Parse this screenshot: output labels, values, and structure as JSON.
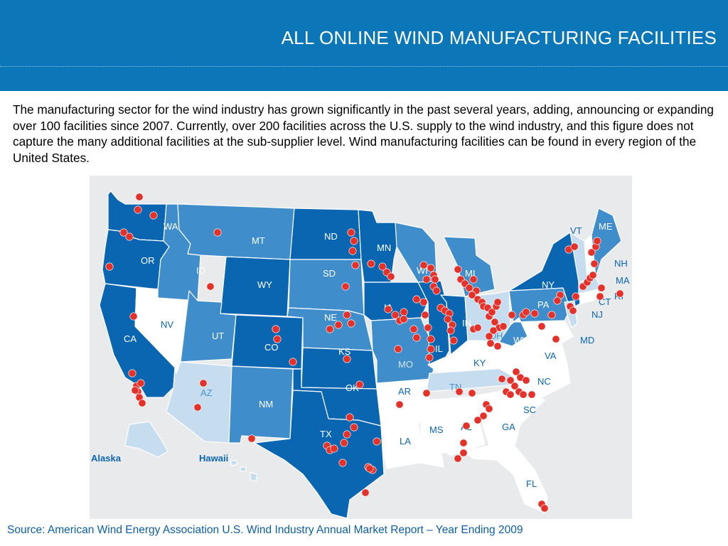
{
  "title": "ALL ONLINE WIND MANUFACTURING FACILITIES",
  "intro": "The manufacturing sector for the wind industry has grown significantly in the past several years, adding, announcing or expanding over 100 facilities since 2007. Currently, over 200 facilities across the U.S. supply to the wind industry, and this figure does not capture the many additional facilities at the sub-supplier level. Wind manufacturing facilities can be found in every region of the United States.",
  "source": "Source: American Wind Energy Association U.S. Wind Industry Annual Market Report – Year Ending 2009",
  "colors": {
    "header": "#0b77b9",
    "dark_state": "#0b66b2",
    "mid_state": "#3f8ecb",
    "light_state": "#c6dcef",
    "no_state": "#ffffff",
    "facility_dot": "#e4322b",
    "ocean": "#e8eaeb"
  },
  "map": {
    "state_labels": [
      "WA",
      "OR",
      "CA",
      "NV",
      "ID",
      "MT",
      "WY",
      "UT",
      "CO",
      "AZ",
      "NM",
      "ND",
      "SD",
      "NE",
      "KS",
      "OK",
      "TX",
      "MN",
      "IA",
      "MO",
      "AR",
      "LA",
      "WI",
      "IL",
      "MI",
      "IN",
      "OH",
      "KY",
      "TN",
      "MS",
      "AL",
      "GA",
      "FL",
      "SC",
      "NC",
      "VA",
      "WV",
      "PA",
      "NY",
      "MD",
      "NJ",
      "CT",
      "RI",
      "MA",
      "NH",
      "VT",
      "ME"
    ],
    "inset_labels": [
      "Alaska",
      "Hawaii"
    ]
  }
}
